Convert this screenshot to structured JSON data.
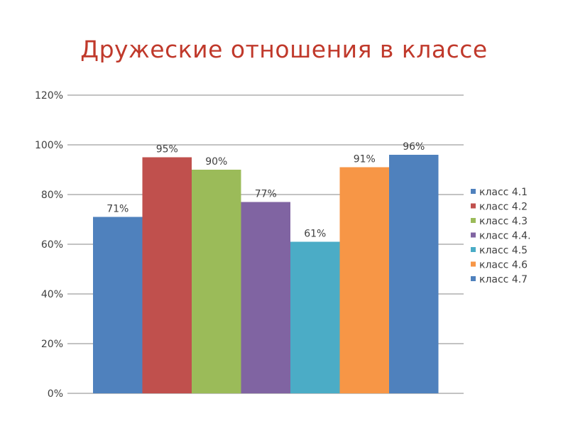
{
  "title": "Дружеские отношения в классе",
  "chart_data": {
    "type": "bar",
    "categories": [
      "класс 4.1",
      "класс 4.2",
      "класс 4.3",
      "класс 4.4.",
      "класс 4.5",
      "класс 4.6",
      "класс 4.7"
    ],
    "values": [
      71,
      95,
      90,
      77,
      61,
      91,
      96
    ],
    "data_labels": [
      "71%",
      "95%",
      "90%",
      "77%",
      "61%",
      "91%",
      "96%"
    ],
    "colors": [
      "#4f81bd",
      "#c0504d",
      "#9bbb59",
      "#8064a2",
      "#4bacc6",
      "#f79646",
      "#4f81bd"
    ],
    "y_ticks": [
      "0%",
      "20%",
      "40%",
      "60%",
      "80%",
      "100%",
      "120%"
    ],
    "ylim": [
      0,
      120
    ],
    "grid": true,
    "legend_position": "right"
  }
}
